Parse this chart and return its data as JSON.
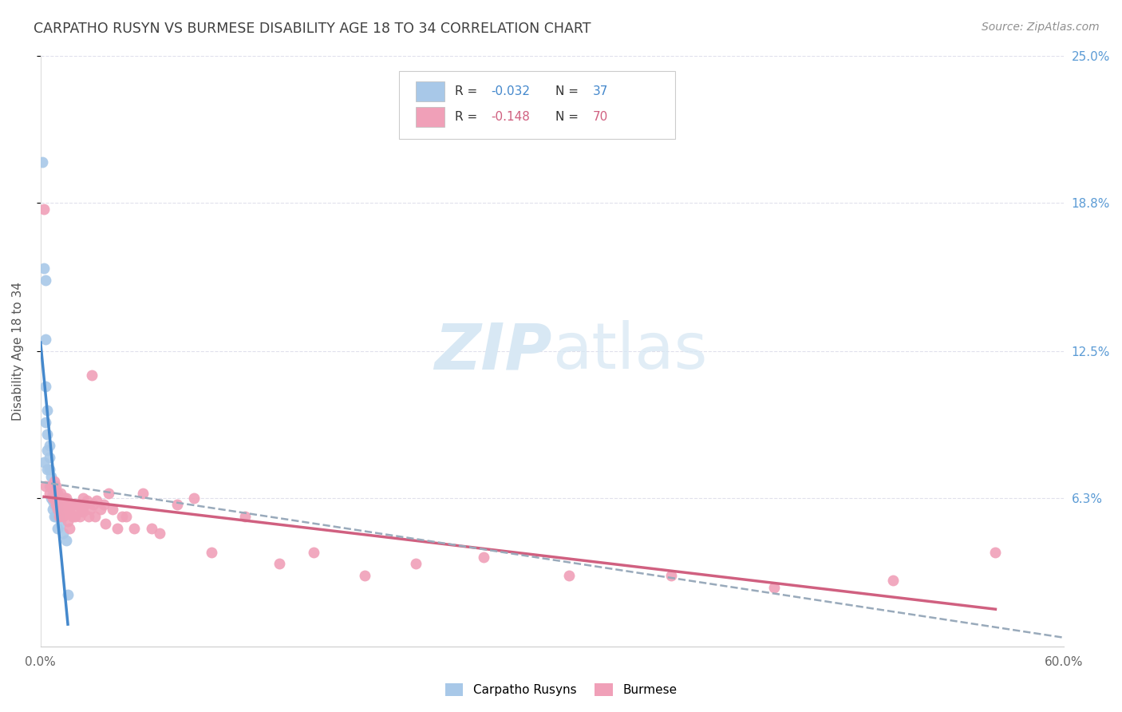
{
  "title": "CARPATHO RUSYN VS BURMESE DISABILITY AGE 18 TO 34 CORRELATION CHART",
  "source": "Source: ZipAtlas.com",
  "ylabel": "Disability Age 18 to 34",
  "xlim": [
    0.0,
    0.6
  ],
  "ylim": [
    0.0,
    0.25
  ],
  "ytick_labels_right": [
    "6.3%",
    "12.5%",
    "18.8%",
    "25.0%"
  ],
  "ytick_values_right": [
    0.063,
    0.125,
    0.188,
    0.25
  ],
  "blue_R": -0.032,
  "blue_N": 37,
  "pink_R": -0.148,
  "pink_N": 70,
  "blue_color": "#A8C8E8",
  "pink_color": "#F0A0B8",
  "blue_line_color": "#4488CC",
  "pink_line_color": "#D06080",
  "dash_line_color": "#99AABB",
  "watermark_color": "#D8E8F4",
  "grid_color": "#E0E0EC",
  "background_color": "#FFFFFF",
  "right_label_color": "#5B9BD5",
  "title_color": "#404040",
  "source_color": "#909090",
  "blue_scatter_x": [
    0.001,
    0.002,
    0.002,
    0.003,
    0.003,
    0.003,
    0.003,
    0.004,
    0.004,
    0.004,
    0.004,
    0.005,
    0.005,
    0.005,
    0.005,
    0.006,
    0.006,
    0.006,
    0.007,
    0.007,
    0.007,
    0.007,
    0.008,
    0.008,
    0.008,
    0.008,
    0.009,
    0.009,
    0.009,
    0.01,
    0.01,
    0.01,
    0.011,
    0.012,
    0.013,
    0.015,
    0.016
  ],
  "blue_scatter_y": [
    0.205,
    0.16,
    0.078,
    0.155,
    0.13,
    0.11,
    0.095,
    0.1,
    0.09,
    0.083,
    0.075,
    0.085,
    0.08,
    0.075,
    0.068,
    0.072,
    0.068,
    0.063,
    0.068,
    0.065,
    0.062,
    0.058,
    0.068,
    0.065,
    0.06,
    0.055,
    0.063,
    0.06,
    0.055,
    0.06,
    0.058,
    0.05,
    0.055,
    0.052,
    0.048,
    0.045,
    0.022
  ],
  "pink_scatter_x": [
    0.002,
    0.003,
    0.005,
    0.006,
    0.007,
    0.007,
    0.008,
    0.008,
    0.009,
    0.009,
    0.01,
    0.01,
    0.011,
    0.011,
    0.012,
    0.012,
    0.013,
    0.013,
    0.014,
    0.014,
    0.015,
    0.015,
    0.016,
    0.016,
    0.017,
    0.017,
    0.018,
    0.019,
    0.02,
    0.02,
    0.021,
    0.022,
    0.023,
    0.024,
    0.025,
    0.025,
    0.026,
    0.027,
    0.028,
    0.029,
    0.03,
    0.031,
    0.032,
    0.033,
    0.035,
    0.037,
    0.038,
    0.04,
    0.042,
    0.045,
    0.048,
    0.05,
    0.055,
    0.06,
    0.065,
    0.07,
    0.08,
    0.09,
    0.1,
    0.12,
    0.14,
    0.16,
    0.19,
    0.22,
    0.26,
    0.31,
    0.37,
    0.43,
    0.5,
    0.56
  ],
  "pink_scatter_y": [
    0.185,
    0.068,
    0.065,
    0.068,
    0.068,
    0.063,
    0.07,
    0.063,
    0.068,
    0.06,
    0.065,
    0.058,
    0.062,
    0.055,
    0.065,
    0.058,
    0.06,
    0.055,
    0.063,
    0.056,
    0.063,
    0.057,
    0.06,
    0.053,
    0.057,
    0.05,
    0.06,
    0.055,
    0.06,
    0.055,
    0.058,
    0.06,
    0.055,
    0.058,
    0.063,
    0.057,
    0.06,
    0.062,
    0.055,
    0.058,
    0.115,
    0.06,
    0.055,
    0.062,
    0.058,
    0.06,
    0.052,
    0.065,
    0.058,
    0.05,
    0.055,
    0.055,
    0.05,
    0.065,
    0.05,
    0.048,
    0.06,
    0.063,
    0.04,
    0.055,
    0.035,
    0.04,
    0.03,
    0.035,
    0.038,
    0.03,
    0.03,
    0.025,
    0.028,
    0.04
  ]
}
